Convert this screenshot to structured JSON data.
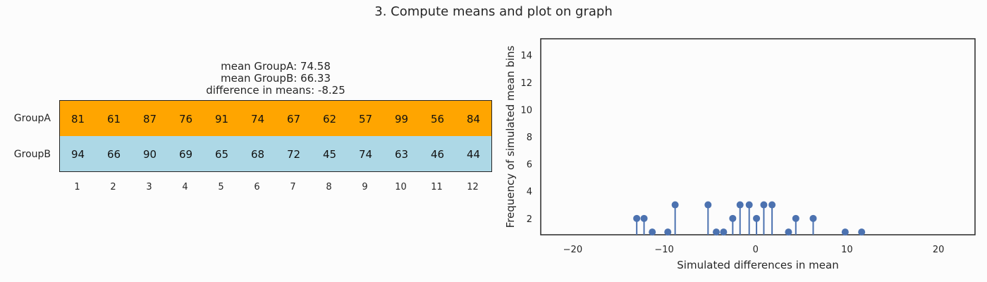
{
  "suptitle": "3. Compute means and plot on graph",
  "table": {
    "title_lines": [
      "mean GroupA: 74.58",
      "mean GroupB: 66.33",
      "difference in means: -8.25"
    ],
    "rows": [
      {
        "label": "GroupA",
        "color": "#ffa500",
        "values": [
          81,
          61,
          87,
          76,
          91,
          74,
          67,
          62,
          57,
          99,
          56,
          84
        ]
      },
      {
        "label": "GroupB",
        "color": "#add8e6",
        "values": [
          94,
          66,
          90,
          69,
          65,
          68,
          72,
          45,
          74,
          63,
          46,
          44
        ]
      }
    ],
    "columns": [
      "1",
      "2",
      "3",
      "4",
      "5",
      "6",
      "7",
      "8",
      "9",
      "10",
      "11",
      "12"
    ]
  },
  "chart_data": {
    "type": "scatter",
    "style": "stem",
    "xlabel": "Simulated differences in mean",
    "ylabel": "Frequency of simulated mean bins",
    "xlim": [
      -23.5,
      24
    ],
    "ylim": [
      0.8,
      15.2
    ],
    "xticks": [
      -20,
      -10,
      0,
      10,
      20
    ],
    "xtick_labels": [
      "−20",
      "−10",
      "0",
      "10",
      "20"
    ],
    "yticks": [
      2,
      4,
      6,
      8,
      10,
      12,
      14
    ],
    "grid": false,
    "color": "#4c72b0",
    "points": [
      {
        "x": -13.0,
        "y": 2
      },
      {
        "x": -12.2,
        "y": 2
      },
      {
        "x": -11.3,
        "y": 1
      },
      {
        "x": -9.6,
        "y": 1
      },
      {
        "x": -8.8,
        "y": 3
      },
      {
        "x": -5.2,
        "y": 3
      },
      {
        "x": -4.3,
        "y": 1
      },
      {
        "x": -3.5,
        "y": 1
      },
      {
        "x": -2.5,
        "y": 2
      },
      {
        "x": -1.7,
        "y": 3
      },
      {
        "x": -0.7,
        "y": 3
      },
      {
        "x": 0.1,
        "y": 2
      },
      {
        "x": 0.9,
        "y": 3
      },
      {
        "x": 1.8,
        "y": 3
      },
      {
        "x": 3.6,
        "y": 1
      },
      {
        "x": 4.4,
        "y": 2
      },
      {
        "x": 6.3,
        "y": 2
      },
      {
        "x": 9.8,
        "y": 1
      },
      {
        "x": 11.6,
        "y": 1
      }
    ]
  }
}
